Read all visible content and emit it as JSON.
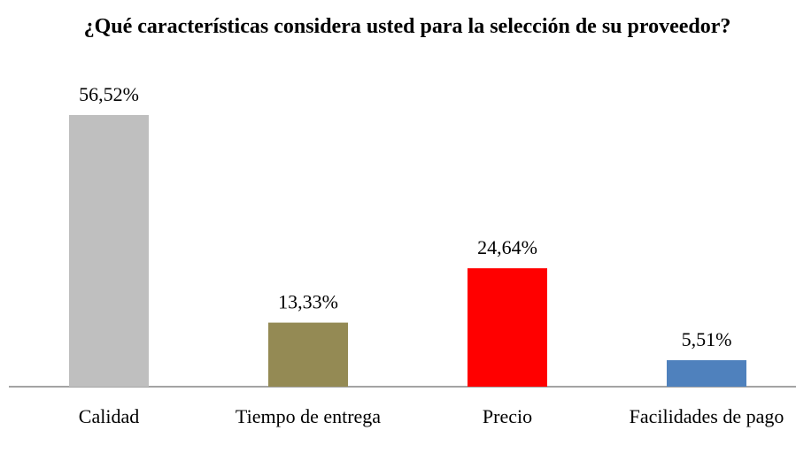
{
  "chart_data": {
    "type": "bar",
    "title": "¿Qué características considera usted para la selección de su proveedor?",
    "categories": [
      "Calidad",
      "Tiempo de entrega",
      "Precio",
      "Facilidades de pago"
    ],
    "values": [
      56.52,
      13.33,
      24.64,
      5.51
    ],
    "value_labels": [
      "56,52%",
      "13,33%",
      "24,64%",
      "5,51%"
    ],
    "colors": [
      "#bfbfbf",
      "#948a54",
      "#ff0000",
      "#4f81bd"
    ]
  }
}
